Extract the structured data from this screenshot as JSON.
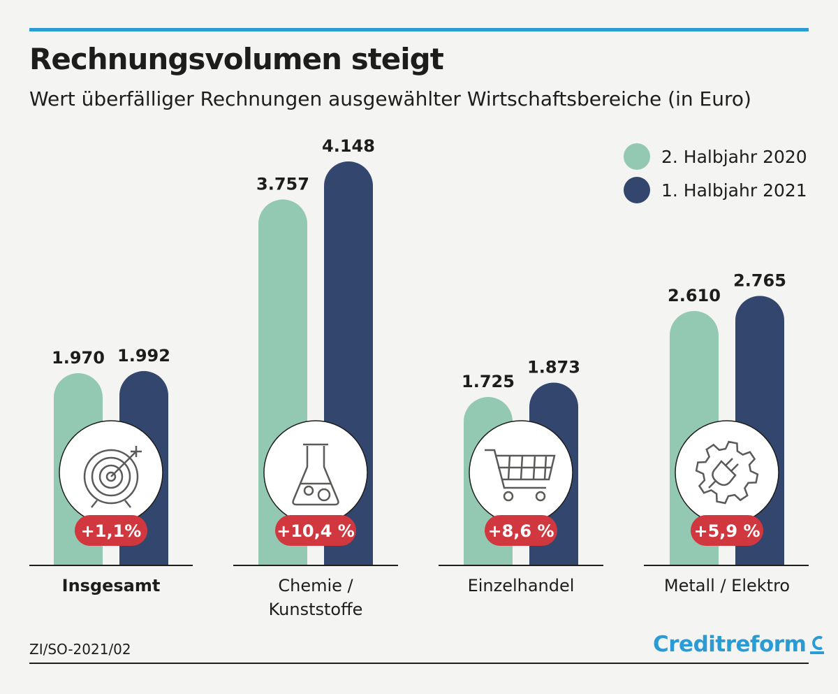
{
  "header": {
    "title": "Rechnungsvolumen steigt",
    "subtitle": "Wert überfälliger Rechnungen ausgewählter Wirtschaftsbereiche (in Euro)"
  },
  "chart_data": {
    "type": "bar",
    "categories": [
      "Insgesamt",
      "Chemie /\nKunststoffe",
      "Einzelhandel",
      "Metall / Elektro"
    ],
    "series": [
      {
        "name": "2. Halbjahr 2020",
        "values": [
          1970,
          3757,
          1725,
          2610
        ],
        "labels": [
          "1.970",
          "3.757",
          "1.725",
          "2.610"
        ],
        "color": "#93c9b2"
      },
      {
        "name": "1. Halbjahr 2021",
        "values": [
          1992,
          4148,
          1873,
          2765
        ],
        "labels": [
          "1.992",
          "4.148",
          "1.873",
          "2.765"
        ],
        "color": "#33466e"
      }
    ],
    "changes": [
      "+1,1%",
      "+10,4 %",
      "+8,6 %",
      "+5,9 %"
    ],
    "icons": [
      "target-icon",
      "flask-icon",
      "shopping-cart-icon",
      "gear-plug-icon"
    ],
    "legend_position": "top-right",
    "change_badge_color": "#d0373f"
  },
  "footer": {
    "source": "ZI/SO-2021/02",
    "logo": "Creditreform"
  },
  "colors": {
    "accent_rule": "#2a9bd4",
    "text": "#1d1d1b",
    "background": "#f4f4f2"
  }
}
